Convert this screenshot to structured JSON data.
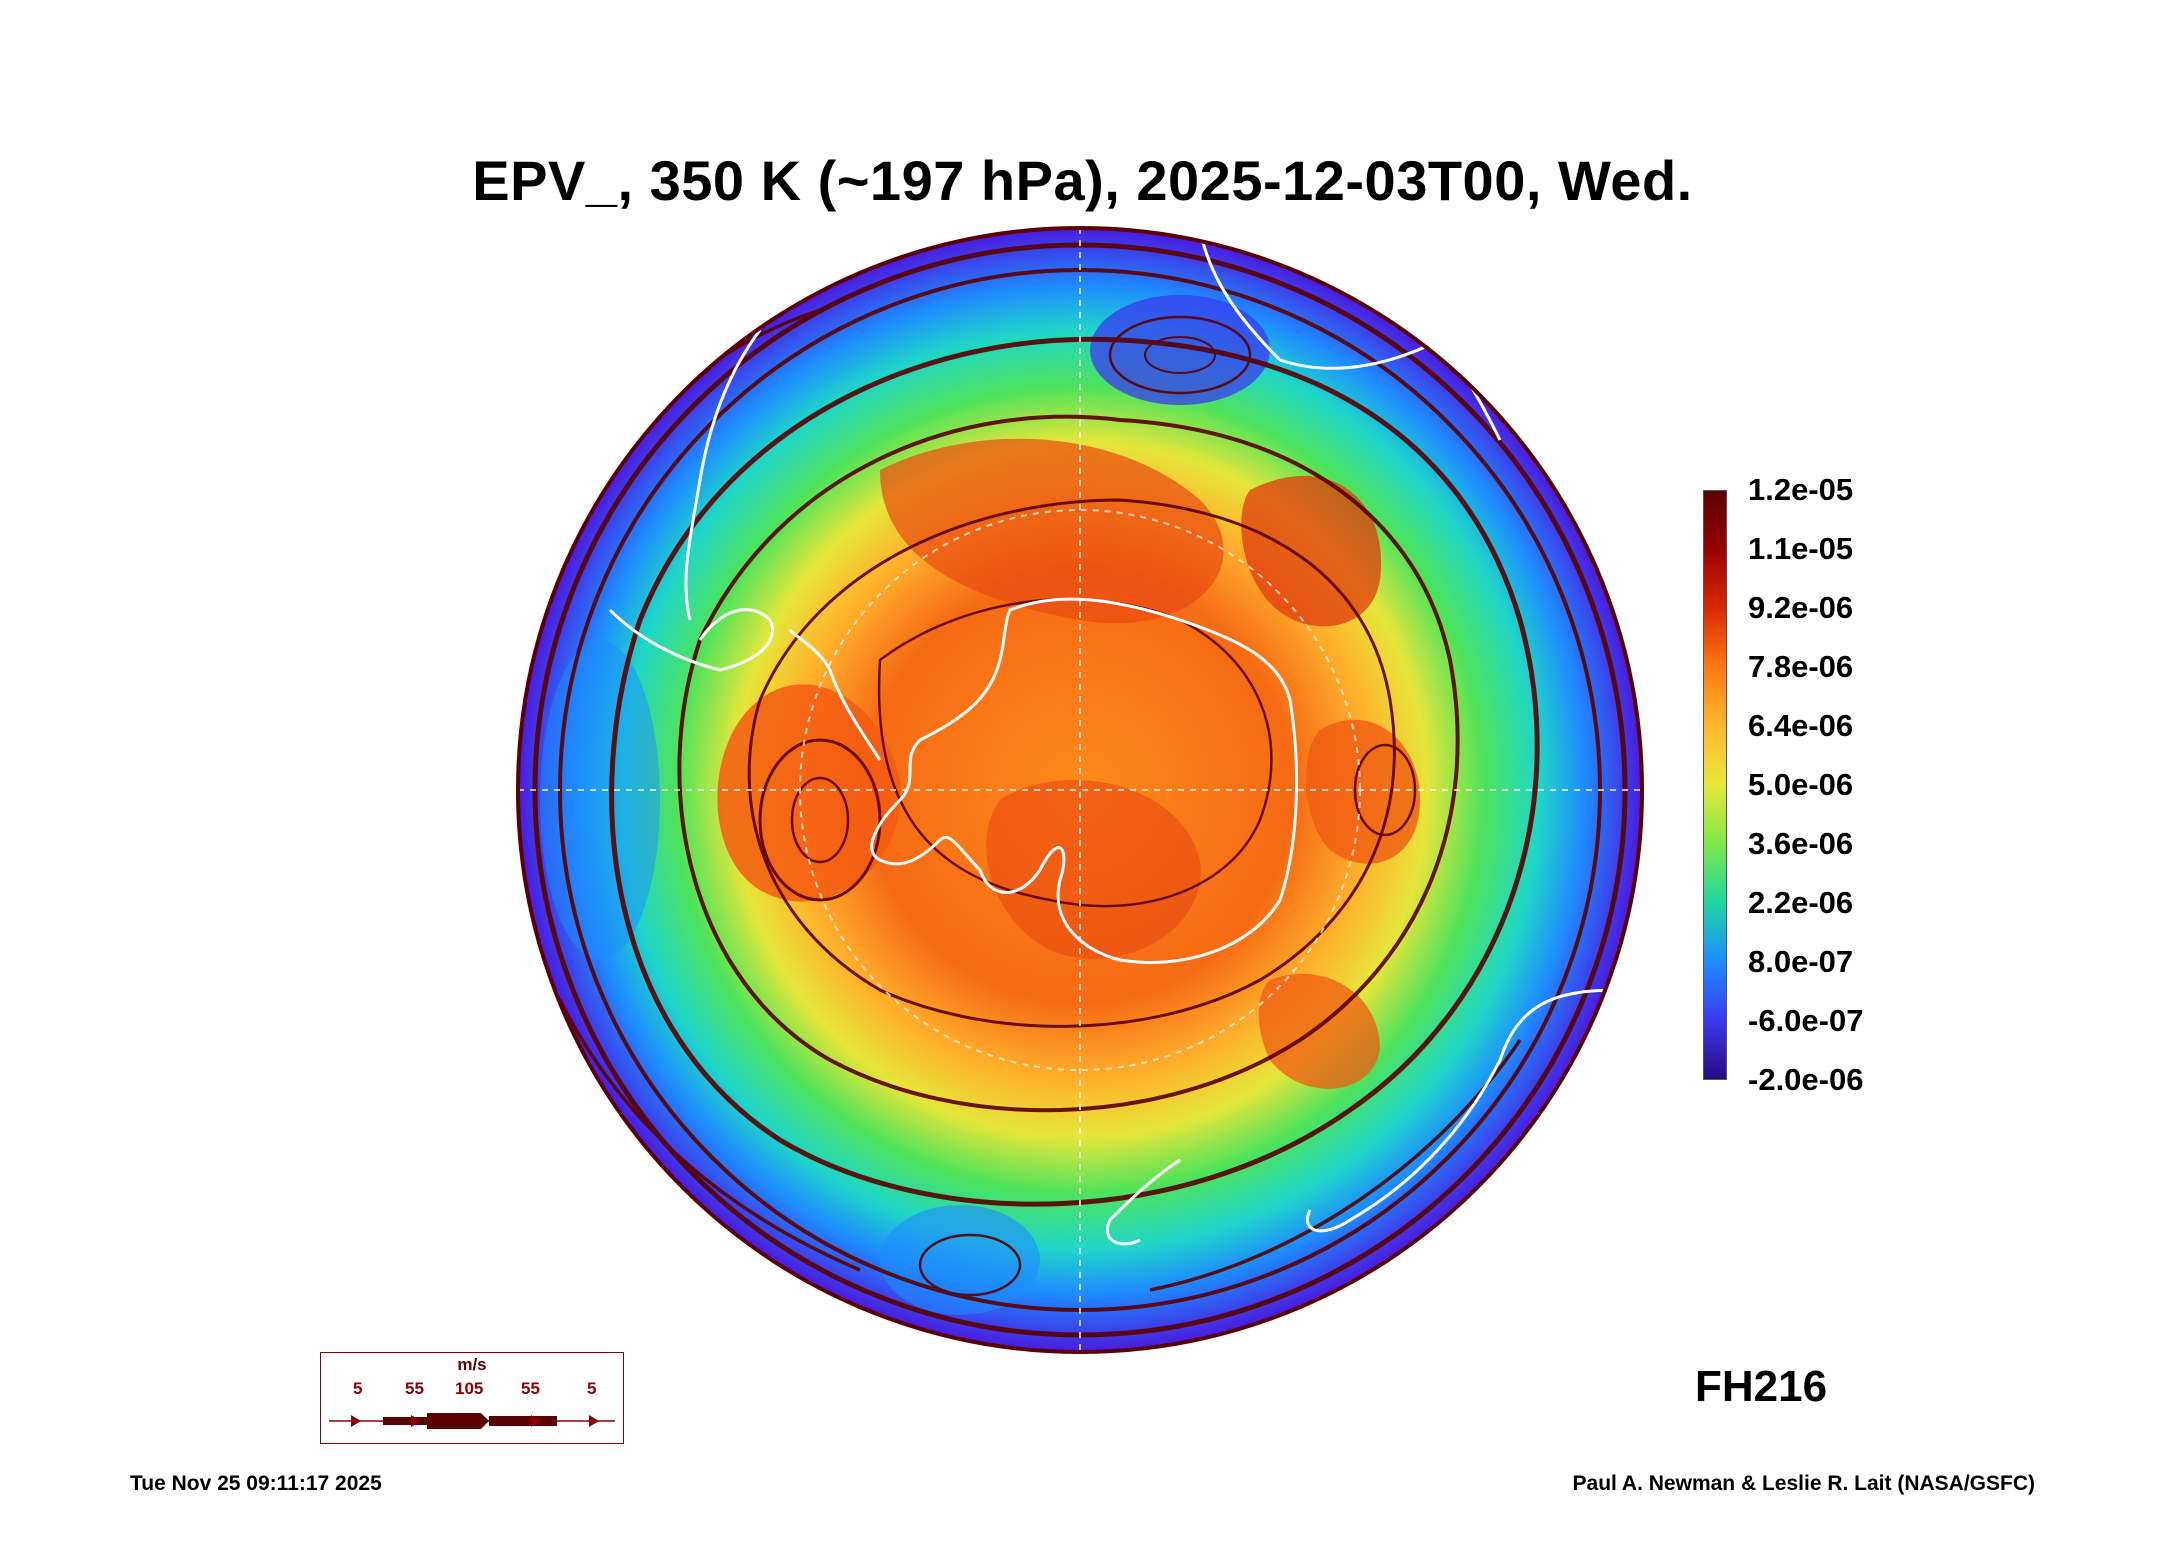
{
  "title": "EPV_, 350 K (~197 hPa), 2025-12-03T00, Wed.",
  "map": {
    "projection": "south-polar-stereographic",
    "field": "EPV_",
    "colors": {
      "outer": "#4a1ee0",
      "blue": "#1e8cff",
      "cyan": "#1fd6c8",
      "green": "#4ee35a",
      "yellow": "#e6e63a",
      "orange": "#ff8a1a",
      "red_orange": "#f35a12",
      "dark_red": "#6b0000",
      "coast": "#ffffff"
    }
  },
  "colorbar": {
    "labels": [
      "1.2e-05",
      "1.1e-05",
      "9.2e-06",
      "7.8e-06",
      "6.4e-06",
      "5.0e-06",
      "3.6e-06",
      "2.2e-06",
      "8.0e-07",
      "-6.0e-07",
      "-2.0e-06"
    ],
    "colors": [
      "#5a0000",
      "#9b0000",
      "#d82a00",
      "#ff7a10",
      "#ffb830",
      "#e8e83a",
      "#7fe84a",
      "#1fd6a0",
      "#1e8cff",
      "#3a3af0",
      "#2a0a80"
    ]
  },
  "wind_legend": {
    "unit": "m/s",
    "ticks": [
      "5",
      "55",
      "105",
      "55",
      "5"
    ]
  },
  "forecast_hour": "FH216",
  "footer": {
    "timestamp": "Tue Nov 25 09:11:17 2025",
    "credit": "Paul A. Newman & Leslie R. Lait (NASA/GSFC)"
  }
}
